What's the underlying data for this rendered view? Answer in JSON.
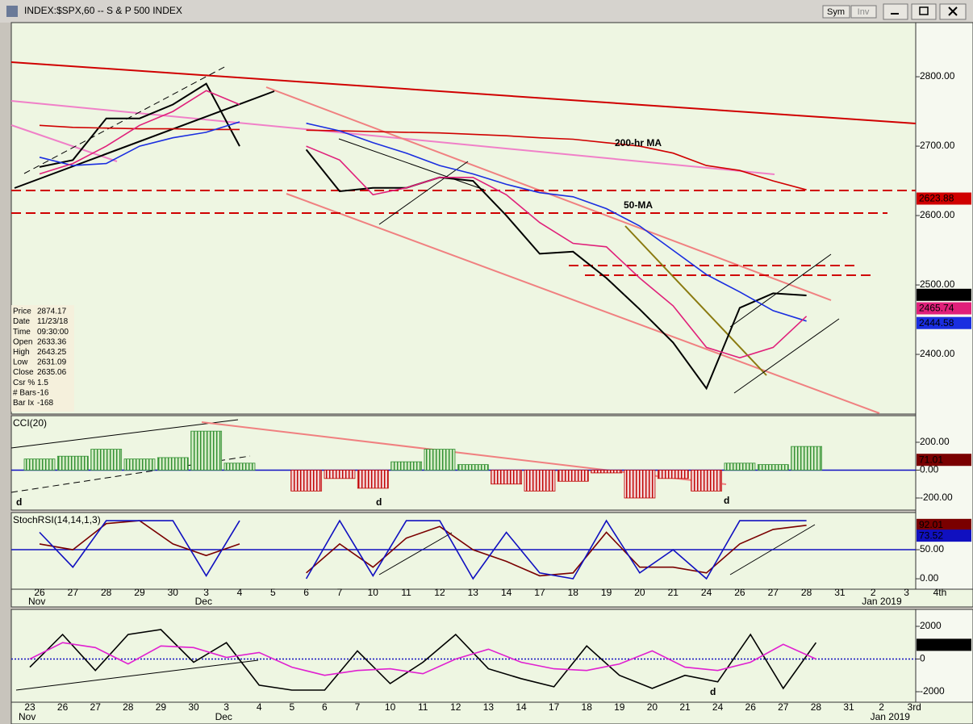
{
  "window": {
    "title": "INDEX:$SPX,60 -- S & P 500 INDEX",
    "buttons": [
      "Sym",
      "Inv"
    ]
  },
  "info_panel": {
    "rows": [
      [
        "Price",
        2874.17
      ],
      [
        "Date",
        "11/23/18"
      ],
      [
        "Time",
        "09:30:00"
      ],
      [
        "Open",
        2633.36
      ],
      [
        "High",
        2643.25
      ],
      [
        "Low",
        2631.09
      ],
      [
        "Close",
        2635.06
      ],
      [
        "Csr %",
        1.5
      ],
      [
        "# Bars",
        -16
      ],
      [
        "Bar Ix",
        -168
      ]
    ]
  },
  "chart_data": [
    {
      "type": "line",
      "categories": [
        "26",
        "27",
        "28",
        "29",
        "30",
        "3",
        "4",
        "5",
        "6",
        "7",
        "10",
        "11",
        "12",
        "13",
        "14",
        "17",
        "18",
        "19",
        "20",
        "21",
        "24",
        "26",
        "27",
        "28",
        "31",
        "2",
        "3",
        "4th"
      ],
      "x_sublabels": [
        "Nov",
        null,
        null,
        null,
        null,
        "Dec",
        null,
        null,
        null,
        null,
        null,
        null,
        null,
        null,
        null,
        null,
        null,
        null,
        null,
        null,
        null,
        null,
        null,
        null,
        null,
        "Jan 2019",
        null,
        null
      ],
      "ylim": [
        2314,
        2878
      ],
      "yticks": [
        {
          "value": 2800,
          "label": "2800.00"
        },
        {
          "value": 2700,
          "label": "2700.00"
        },
        {
          "value": 2600,
          "label": "2600.00"
        },
        {
          "value": 2500,
          "label": "2500.00"
        },
        {
          "value": 2400,
          "label": "2400.00"
        }
      ],
      "series": [
        {
          "color": "#000000",
          "last": 2485.19,
          "values": [
            2670,
            2680,
            2740,
            2740,
            2760,
            2790,
            2700,
            null,
            2695,
            2635,
            2640,
            2640,
            2655,
            2650,
            2600,
            2545,
            2548,
            2510,
            2465,
            2417,
            2351,
            2467,
            2488,
            2485,
            null,
            null,
            null,
            null
          ]
        },
        {
          "name": "200-hr MA",
          "color": "#d00000",
          "last": 2623.88,
          "values": [
            2730,
            2727,
            2726,
            2725,
            2725,
            2724,
            2724,
            null,
            2723,
            2722,
            2721,
            2720,
            2719,
            2717,
            2715,
            2712,
            2710,
            2705,
            2700,
            2690,
            2672,
            2665,
            2650,
            2637,
            null,
            null,
            null,
            null
          ]
        },
        {
          "name": "50-MA",
          "color": "#1a2ee0",
          "last": 2444.58,
          "values": [
            2684,
            2672,
            2675,
            2700,
            2712,
            2720,
            2735,
            null,
            2733,
            2722,
            2705,
            2690,
            2672,
            2660,
            2645,
            2633,
            2627,
            2610,
            2585,
            2550,
            2515,
            2490,
            2463,
            2448,
            null,
            null,
            null,
            null
          ]
        },
        {
          "color": "#e0207a",
          "last": 2465.74,
          "values": [
            2660,
            2675,
            2700,
            2730,
            2750,
            2780,
            2760,
            null,
            2700,
            2680,
            2630,
            2640,
            2655,
            2655,
            2630,
            2590,
            2560,
            2555,
            2510,
            2470,
            2410,
            2395,
            2410,
            2455,
            null,
            null,
            null,
            null
          ]
        }
      ]
    },
    {
      "type": "bar",
      "title": "CCI(20)",
      "ylim": [
        -287,
        391
      ],
      "yticks": [
        {
          "value": 200,
          "label": "200.00"
        },
        {
          "value": 0,
          "label": "0.00"
        },
        {
          "value": -200,
          "label": "-200.00"
        }
      ],
      "baseline": 0,
      "baseline_color": "#1010c0",
      "markers": [
        "d",
        "d",
        "d"
      ],
      "marker_color": "#108010",
      "series": [
        {
          "color": "#2f8f2f",
          "negative_color": "#c00000",
          "label_color": "#7a0000",
          "last": 71.01,
          "values": [
            80,
            100,
            150,
            80,
            90,
            280,
            50,
            null,
            -150,
            -60,
            -130,
            60,
            150,
            40,
            -100,
            -150,
            -80,
            -20,
            -200,
            -60,
            -150,
            50,
            40,
            170,
            null,
            null,
            null,
            null
          ]
        }
      ]
    },
    {
      "type": "line",
      "title": "StochRSI(14,14,1,3)",
      "ylim": [
        -18,
        114
      ],
      "yticks": [
        {
          "value": 50,
          "label": "50.00"
        },
        {
          "value": 0,
          "label": "0.00"
        }
      ],
      "baseline": 50,
      "baseline_color": "#1010c0",
      "series": [
        {
          "color": "#7a0000",
          "last": 92.01,
          "values": [
            60,
            50,
            95,
            100,
            60,
            40,
            60,
            null,
            10,
            60,
            20,
            70,
            90,
            50,
            30,
            5,
            10,
            80,
            20,
            20,
            10,
            60,
            85,
            92,
            null,
            null,
            null,
            null
          ]
        },
        {
          "color": "#1010c0",
          "last": 73.52,
          "values": [
            80,
            20,
            100,
            100,
            100,
            5,
            100,
            null,
            0,
            100,
            5,
            100,
            100,
            0,
            80,
            10,
            0,
            100,
            10,
            50,
            0,
            100,
            100,
            100,
            null,
            null,
            null,
            null
          ]
        }
      ]
    },
    {
      "type": "line",
      "categories": [
        "23",
        "26",
        "27",
        "28",
        "29",
        "30",
        "3",
        "4",
        "5",
        "6",
        "7",
        "10",
        "11",
        "12",
        "13",
        "14",
        "17",
        "18",
        "19",
        "20",
        "21",
        "24",
        "26",
        "27",
        "28",
        "31",
        "2",
        "3rd"
      ],
      "x_sublabels": [
        "Nov",
        null,
        null,
        null,
        null,
        null,
        "Dec",
        null,
        null,
        null,
        null,
        null,
        null,
        null,
        null,
        null,
        null,
        null,
        null,
        null,
        null,
        null,
        null,
        null,
        null,
        null,
        "Jan 2019",
        null
      ],
      "ylim": [
        -2642,
        3037
      ],
      "yticks": [
        2000,
        0,
        -2000
      ],
      "baseline": 0,
      "baseline_color": "#1010c0",
      "markers": [
        "d"
      ],
      "marker_color": "#108010",
      "series": [
        {
          "color": "#000000",
          "last": 845,
          "values": [
            -500,
            1500,
            -700,
            1500,
            1800,
            -200,
            1000,
            -1600,
            -1900,
            -1900,
            500,
            -1500,
            -200,
            1500,
            -600,
            -1200,
            -1700,
            800,
            -1000,
            -1800,
            -1000,
            -1400,
            1500,
            -1800,
            1000,
            null,
            null,
            null
          ]
        },
        {
          "color": "#e020d0",
          "values": [
            0,
            1000,
            700,
            -300,
            800,
            700,
            100,
            400,
            -500,
            -1000,
            -700,
            -600,
            -900,
            0,
            600,
            -200,
            -600,
            -700,
            -300,
            500,
            -500,
            -700,
            -200,
            900,
            0,
            null,
            null,
            null
          ]
        }
      ]
    }
  ]
}
